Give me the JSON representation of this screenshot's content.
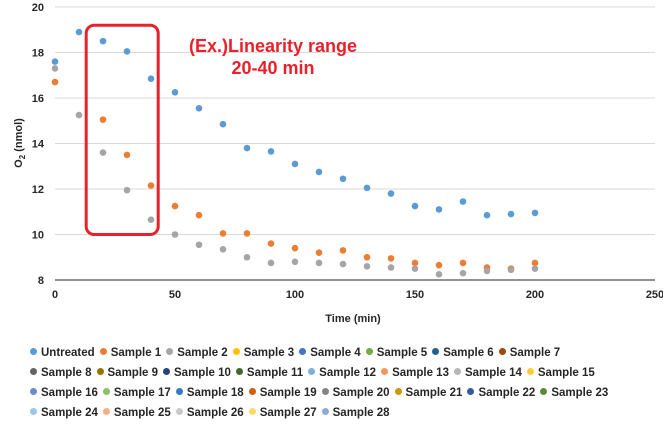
{
  "chart_data": {
    "type": "scatter",
    "title": "",
    "xlabel": "Time (min)",
    "ylabel_main": "O",
    "ylabel_sub": "2",
    "ylabel_rest": " (nmol)",
    "xlim": [
      0,
      250
    ],
    "ylim": [
      8,
      20
    ],
    "x_ticks": [
      "0",
      "50",
      "100",
      "150",
      "200",
      "250"
    ],
    "y_ticks": [
      "8",
      "10",
      "12",
      "14",
      "16",
      "18",
      "20"
    ],
    "grid": "horizontal",
    "annotation": {
      "line1": "(Ex.)Linearity range",
      "line2": "20-40 min",
      "color": "#e8212b",
      "box_x_range": [
        13,
        43
      ],
      "box_y_range": [
        10,
        19.2
      ]
    },
    "series": [
      {
        "name": "Untreated",
        "color": "#5b9bd5",
        "points": [
          [
            0,
            17.6
          ],
          [
            10,
            18.9
          ],
          [
            20,
            18.5
          ],
          [
            30,
            18.05
          ],
          [
            40,
            16.85
          ],
          [
            50,
            16.25
          ],
          [
            60,
            15.55
          ],
          [
            70,
            14.85
          ],
          [
            80,
            13.8
          ],
          [
            90,
            13.65
          ],
          [
            100,
            13.1
          ],
          [
            110,
            12.75
          ],
          [
            120,
            12.45
          ],
          [
            130,
            12.05
          ],
          [
            140,
            11.8
          ],
          [
            150,
            11.25
          ],
          [
            160,
            11.1
          ],
          [
            170,
            11.45
          ],
          [
            180,
            10.85
          ],
          [
            190,
            10.9
          ],
          [
            200,
            10.95
          ]
        ]
      },
      {
        "name": "Sample 1",
        "color": "#ed7d31",
        "points": [
          [
            0,
            16.7
          ],
          [
            20,
            15.05
          ],
          [
            30,
            13.5
          ],
          [
            40,
            12.15
          ],
          [
            50,
            11.25
          ],
          [
            60,
            10.85
          ],
          [
            70,
            10.05
          ],
          [
            80,
            10.05
          ],
          [
            90,
            9.6
          ],
          [
            100,
            9.4
          ],
          [
            110,
            9.2
          ],
          [
            120,
            9.3
          ],
          [
            130,
            9.0
          ],
          [
            140,
            8.95
          ],
          [
            150,
            8.75
          ],
          [
            160,
            8.65
          ],
          [
            170,
            8.75
          ],
          [
            180,
            8.55
          ],
          [
            190,
            8.5
          ],
          [
            200,
            8.75
          ]
        ]
      },
      {
        "name": "Sample 2",
        "color": "#a5a5a5",
        "points": [
          [
            0,
            17.3
          ],
          [
            10,
            15.25
          ],
          [
            20,
            13.6
          ],
          [
            30,
            11.95
          ],
          [
            40,
            10.65
          ],
          [
            50,
            10.0
          ],
          [
            60,
            9.55
          ],
          [
            70,
            9.35
          ],
          [
            80,
            9.0
          ],
          [
            90,
            8.75
          ],
          [
            100,
            8.8
          ],
          [
            110,
            8.75
          ],
          [
            120,
            8.7
          ],
          [
            130,
            8.6
          ],
          [
            140,
            8.55
          ],
          [
            150,
            8.5
          ],
          [
            160,
            8.25
          ],
          [
            170,
            8.3
          ],
          [
            180,
            8.4
          ],
          [
            190,
            8.45
          ],
          [
            200,
            8.5
          ]
        ]
      }
    ]
  },
  "legend": [
    [
      "Untreated",
      "Sample 1",
      "Sample 2",
      "Sample 3",
      "Sample 4",
      "Sample 5",
      "Sample 6",
      "Sample 7"
    ],
    [
      "Sample 8",
      "Sample 9",
      "Sample 10",
      "Sample 11",
      "Sample 12",
      "Sample 13",
      "Sample 14",
      "Sample 15"
    ],
    [
      "Sample 16",
      "Sample 17",
      "Sample 18",
      "Sample 19",
      "Sample 20",
      "Sample 21",
      "Sample 22",
      "Sample 23"
    ],
    [
      "Sample 24",
      "Sample 25",
      "Sample 26",
      "Sample 27",
      "Sample 28"
    ]
  ],
  "legend_colors": [
    [
      "#5b9bd5",
      "#ed7d31",
      "#a5a5a5",
      "#ffc000",
      "#4472c4",
      "#70ad47",
      "#255e91",
      "#9e480e"
    ],
    [
      "#636363",
      "#997300",
      "#264478",
      "#43682b",
      "#7cafdd",
      "#f1975a",
      "#b7b7b7",
      "#ffcd33"
    ],
    [
      "#698ed0",
      "#8cc168",
      "#327dc2",
      "#d26012",
      "#848484",
      "#cc9a00",
      "#335aa1",
      "#5a8a39"
    ],
    [
      "#9dc3e6",
      "#f4b183",
      "#c9c9c9",
      "#ffd966",
      "#8faadc"
    ]
  ]
}
